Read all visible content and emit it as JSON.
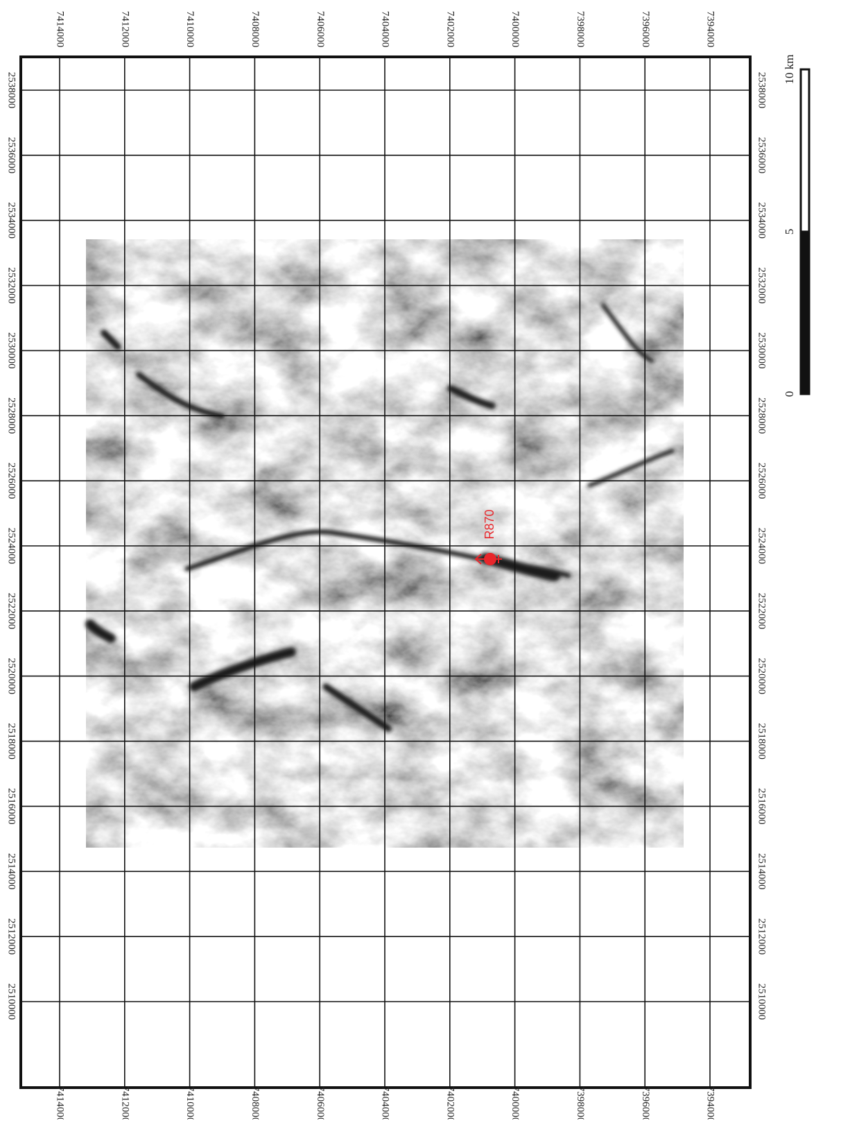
{
  "map": {
    "grid_x": [
      7414000,
      7412000,
      7410000,
      7408000,
      7406000,
      7404000,
      7402000,
      7400000,
      7398000,
      7396000,
      7394000
    ],
    "grid_y": [
      2538000,
      2536000,
      2534000,
      2532000,
      2530000,
      2528000,
      2526000,
      2524000,
      2522000,
      2520000,
      2518000,
      2516000,
      2514000,
      2512000,
      2510000
    ],
    "marker": {
      "label": "R870"
    },
    "scale_bar": {
      "ticks": [
        0,
        5,
        {
          "value": 10,
          "label": "10 km"
        }
      ]
    }
  }
}
